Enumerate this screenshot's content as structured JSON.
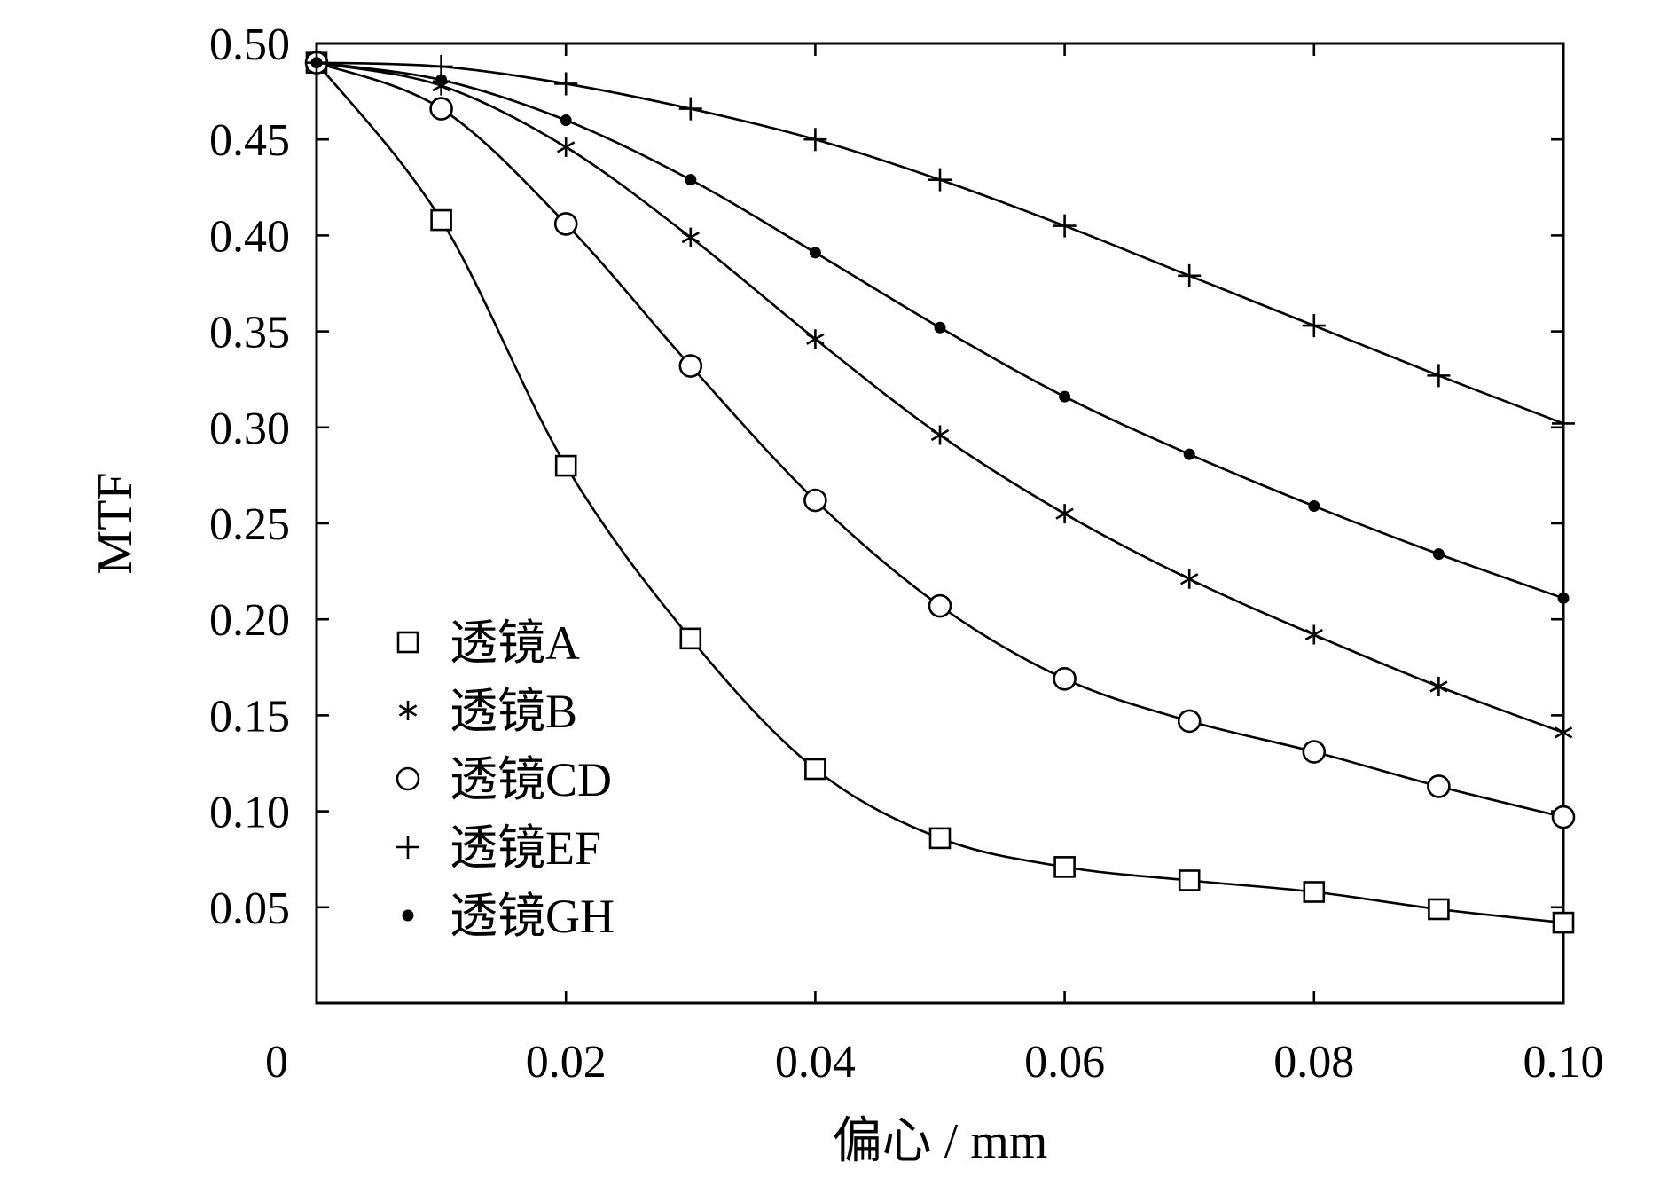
{
  "chart_data": {
    "type": "line",
    "title": "",
    "xlabel": "偏心 / mm",
    "ylabel": "MTF",
    "xlim": [
      0,
      0.1
    ],
    "ylim": [
      0,
      0.5
    ],
    "x_ticks": [
      0,
      0.02,
      0.04,
      0.06,
      0.08,
      0.1
    ],
    "x_tick_labels": [
      "0",
      "0.02",
      "0.04",
      "0.06",
      "0.08",
      "0.10"
    ],
    "y_ticks": [
      0.05,
      0.1,
      0.15,
      0.2,
      0.25,
      0.3,
      0.35,
      0.4,
      0.45,
      0.5
    ],
    "y_tick_labels": [
      "0.05",
      "0.10",
      "0.15",
      "0.20",
      "0.25",
      "0.30",
      "0.35",
      "0.40",
      "0.45",
      "0.50"
    ],
    "grid": false,
    "legend_position": "bottom-left",
    "x": [
      0,
      0.01,
      0.02,
      0.03,
      0.04,
      0.05,
      0.06,
      0.07,
      0.08,
      0.09,
      0.1
    ],
    "series": [
      {
        "name": "透镜A",
        "marker": "square",
        "values": [
          0.49,
          0.408,
          0.28,
          0.19,
          0.122,
          0.086,
          0.071,
          0.064,
          0.058,
          0.049,
          0.042
        ]
      },
      {
        "name": "透镜B",
        "marker": "asterisk",
        "values": [
          0.49,
          0.478,
          0.446,
          0.399,
          0.346,
          0.296,
          0.255,
          0.221,
          0.192,
          0.165,
          0.141
        ]
      },
      {
        "name": "透镜CD",
        "marker": "circle",
        "values": [
          0.49,
          0.466,
          0.406,
          0.332,
          0.262,
          0.207,
          0.169,
          0.147,
          0.131,
          0.113,
          0.097
        ]
      },
      {
        "name": "透镜EF",
        "marker": "plus",
        "values": [
          0.49,
          0.488,
          0.479,
          0.466,
          0.45,
          0.429,
          0.405,
          0.379,
          0.353,
          0.327,
          0.302
        ]
      },
      {
        "name": "透镜GH",
        "marker": "dot",
        "values": [
          0.49,
          0.481,
          0.46,
          0.429,
          0.391,
          0.352,
          0.316,
          0.286,
          0.259,
          0.234,
          0.211
        ]
      }
    ]
  }
}
